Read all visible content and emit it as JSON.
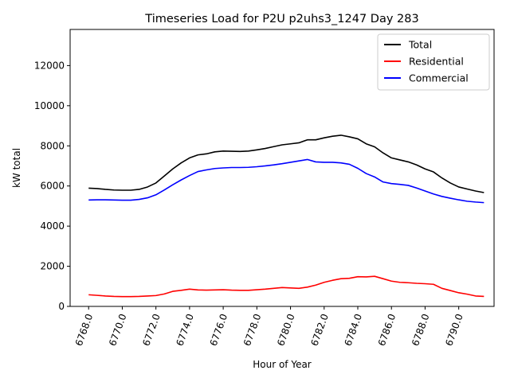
{
  "chart_data": {
    "type": "line",
    "title": "Timeseries Load for P2U p2uhs3_1247  Day 283",
    "xlabel": "Hour of Year",
    "ylabel": "kW total",
    "xlim": [
      6766.9,
      6792.1
    ],
    "ylim": [
      0,
      13800
    ],
    "xticks": [
      6768,
      6770,
      6772,
      6774,
      6776,
      6778,
      6780,
      6782,
      6784,
      6786,
      6788,
      6790
    ],
    "xtick_labels": [
      "6768.0",
      "6770.0",
      "6772.0",
      "6774.0",
      "6776.0",
      "6778.0",
      "6780.0",
      "6782.0",
      "6784.0",
      "6786.0",
      "6788.0",
      "6790.0"
    ],
    "yticks": [
      0,
      2000,
      4000,
      6000,
      8000,
      10000,
      12000
    ],
    "ytick_labels": [
      "0",
      "2000",
      "4000",
      "6000",
      "8000",
      "10000",
      "12000"
    ],
    "xtick_rotation": 70,
    "legend_position": "top-right",
    "grid": false,
    "x": [
      6768,
      6768.5,
      6769,
      6769.5,
      6770,
      6770.5,
      6771,
      6771.5,
      6772,
      6772.5,
      6773,
      6773.5,
      6774,
      6774.5,
      6775,
      6775.5,
      6776,
      6776.5,
      6777,
      6777.5,
      6778,
      6778.5,
      6779,
      6779.5,
      6780,
      6780.5,
      6781,
      6781.5,
      6782,
      6782.5,
      6783,
      6783.5,
      6784,
      6784.5,
      6785,
      6785.5,
      6786,
      6786.5,
      6787,
      6787.5,
      6788,
      6788.5,
      6789,
      6789.5,
      6790,
      6790.5,
      6791,
      6791.5
    ],
    "series": [
      {
        "name": "Total",
        "color": "#000000",
        "values": [
          5890,
          5870,
          5830,
          5800,
          5790,
          5790,
          5830,
          5950,
          6150,
          6500,
          6850,
          7150,
          7400,
          7550,
          7600,
          7700,
          7740,
          7730,
          7720,
          7740,
          7800,
          7870,
          7960,
          8050,
          8100,
          8150,
          8300,
          8300,
          8400,
          8480,
          8530,
          8450,
          8350,
          8100,
          7950,
          7650,
          7400,
          7300,
          7200,
          7050,
          6850,
          6700,
          6400,
          6150,
          5950,
          5850,
          5750,
          5670
        ]
      },
      {
        "name": "Residential",
        "color": "#ff0000",
        "values": [
          580,
          550,
          520,
          500,
          490,
          490,
          500,
          520,
          540,
          620,
          750,
          800,
          860,
          820,
          810,
          820,
          830,
          810,
          800,
          800,
          830,
          860,
          900,
          940,
          920,
          900,
          960,
          1060,
          1200,
          1300,
          1380,
          1400,
          1480,
          1470,
          1500,
          1380,
          1260,
          1200,
          1180,
          1150,
          1130,
          1100,
          900,
          790,
          680,
          610,
          520,
          500
        ]
      },
      {
        "name": "Commercial",
        "color": "#0000ff",
        "values": [
          5300,
          5310,
          5310,
          5300,
          5290,
          5290,
          5330,
          5410,
          5560,
          5800,
          6060,
          6300,
          6520,
          6720,
          6800,
          6870,
          6900,
          6920,
          6920,
          6930,
          6960,
          7000,
          7050,
          7110,
          7180,
          7250,
          7320,
          7200,
          7180,
          7180,
          7150,
          7080,
          6880,
          6620,
          6450,
          6200,
          6120,
          6080,
          6030,
          5900,
          5750,
          5600,
          5480,
          5390,
          5310,
          5240,
          5200,
          5170
        ]
      }
    ]
  }
}
